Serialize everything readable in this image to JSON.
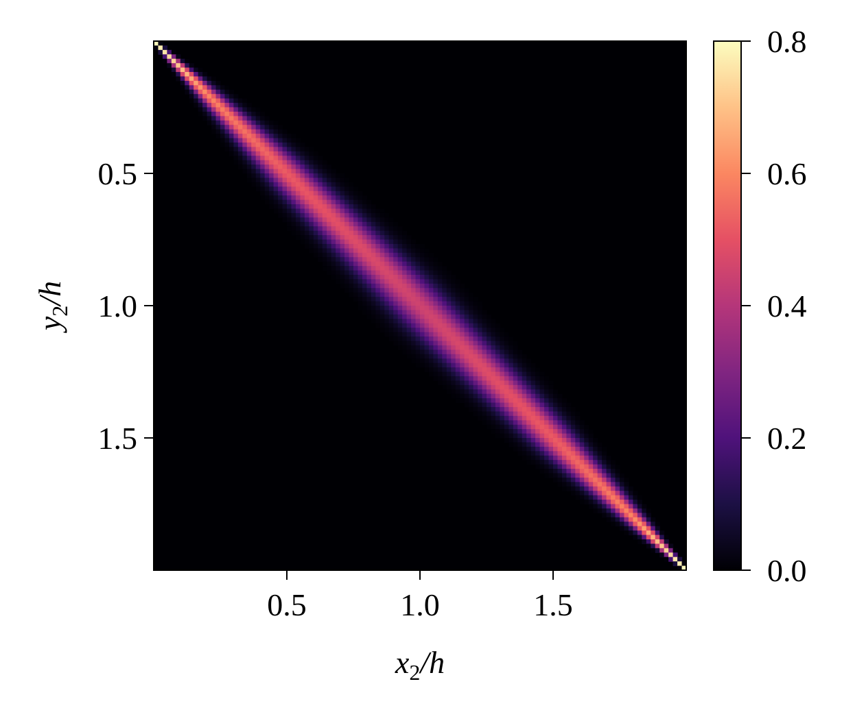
{
  "chart_data": {
    "type": "heatmap",
    "title": "",
    "xlabel": {
      "base": "x",
      "sub": "2",
      "tail": "/h"
    },
    "ylabel": {
      "base": "y",
      "sub": "2",
      "tail": "/h"
    },
    "xlim": [
      0,
      2
    ],
    "ylim": [
      0,
      2
    ],
    "y_inverted": true,
    "x_ticks": [
      0.5,
      1.0,
      1.5
    ],
    "x_tick_labels": [
      "0.5",
      "1.0",
      "1.5"
    ],
    "y_ticks": [
      0.5,
      1.0,
      1.5
    ],
    "y_tick_labels": [
      "0.5",
      "1.0",
      "1.5"
    ],
    "grid": false,
    "colormap": "magma",
    "colorbar": {
      "range": [
        0.0,
        0.8
      ],
      "ticks": [
        0.0,
        0.2,
        0.4,
        0.6,
        0.8
      ],
      "tick_labels": [
        "0.0",
        "0.2",
        "0.4",
        "0.6",
        "0.8"
      ],
      "placement": "right"
    },
    "pattern": "diagonal correlation band along x2 = y2",
    "diagonal_profile": {
      "positions": [
        0.0,
        0.05,
        0.2,
        0.5,
        1.0,
        1.5,
        1.8,
        1.95,
        2.0
      ],
      "peak_values": [
        0.8,
        0.75,
        0.6,
        0.52,
        0.45,
        0.52,
        0.6,
        0.75,
        0.8
      ],
      "band_halfwidth": [
        0.004,
        0.01,
        0.03,
        0.06,
        0.08,
        0.06,
        0.03,
        0.01,
        0.004
      ]
    },
    "grid_cells": 120
  }
}
